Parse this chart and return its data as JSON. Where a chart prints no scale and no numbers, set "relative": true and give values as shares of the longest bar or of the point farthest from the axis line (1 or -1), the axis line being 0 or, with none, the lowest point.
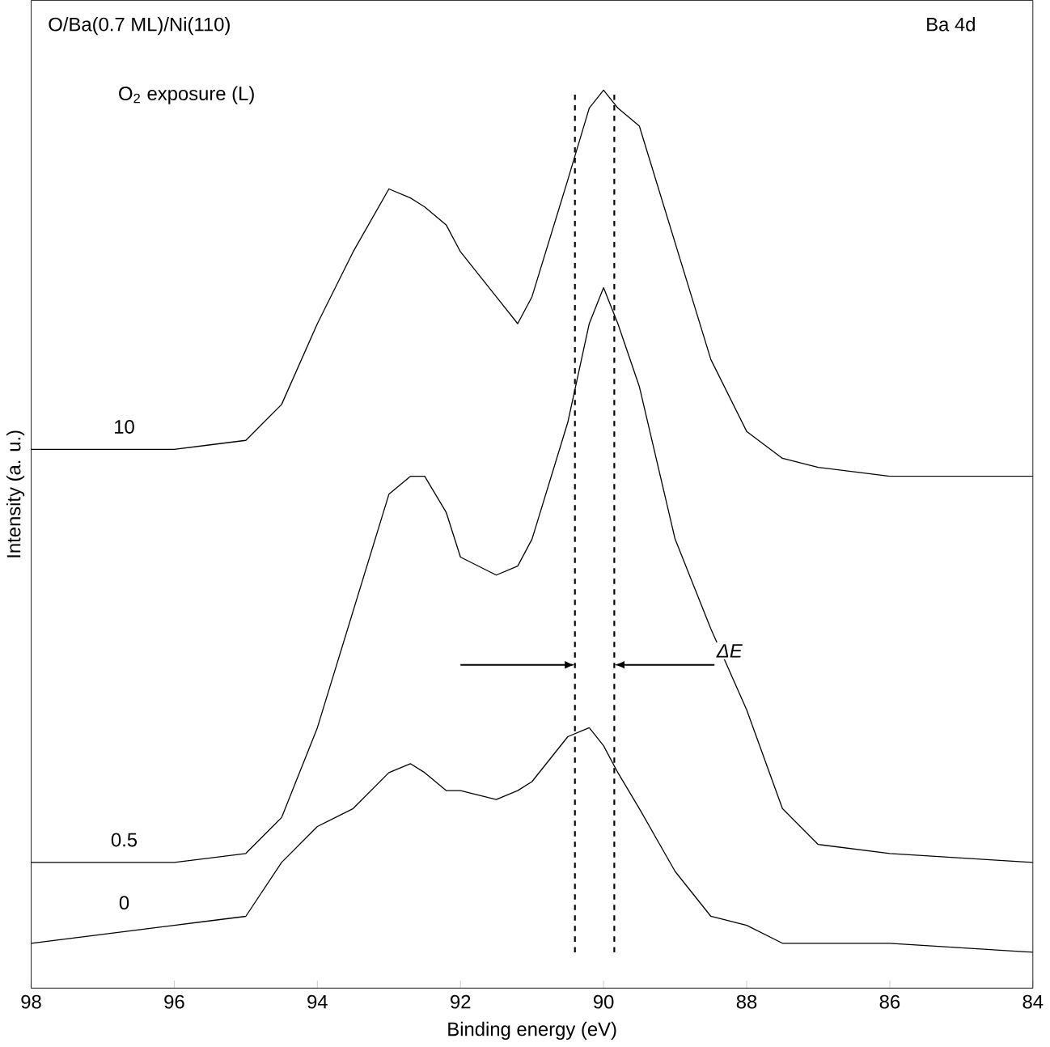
{
  "chart_data": {
    "type": "line",
    "title": "O/Ba(0.7 ML)/Ni(110)",
    "subtitle": "Ba 4d",
    "legend_title": "O$_{2}$ exposure (L)",
    "xlabel": "Binding energy (eV)",
    "ylabel": "Intensity (a. u.)",
    "relative": true,
    "xlim": [
      98,
      84
    ],
    "xticks": [
      98,
      96,
      94,
      92,
      90,
      88,
      86,
      84
    ],
    "marker": "none",
    "line_style": "solid",
    "x": [
      98,
      96,
      95,
      94.5,
      94,
      93.5,
      93,
      92.7,
      92.5,
      92.2,
      92,
      91.5,
      91.2,
      91,
      90.5,
      90.2,
      90,
      89.8,
      89.5,
      89,
      88.5,
      88,
      87.5,
      87,
      86,
      84
    ],
    "series": [
      {
        "name": "10",
        "color": "#000000",
        "values": [
          0.6,
          0.6,
          0.61,
          0.65,
          0.74,
          0.82,
          0.89,
          0.88,
          0.87,
          0.85,
          0.82,
          0.77,
          0.74,
          0.77,
          0.9,
          0.98,
          1.0,
          0.98,
          0.96,
          0.83,
          0.7,
          0.62,
          0.59,
          0.58,
          0.57,
          0.57
        ]
      },
      {
        "name": "0.5",
        "color": "#000000",
        "values": [
          0.14,
          0.14,
          0.15,
          0.19,
          0.29,
          0.42,
          0.55,
          0.57,
          0.57,
          0.53,
          0.48,
          0.46,
          0.47,
          0.5,
          0.63,
          0.74,
          0.78,
          0.74,
          0.67,
          0.5,
          0.4,
          0.31,
          0.2,
          0.16,
          0.15,
          0.14
        ]
      },
      {
        "name": "0",
        "color": "#000000",
        "values": [
          0.05,
          0.07,
          0.08,
          0.14,
          0.18,
          0.2,
          0.24,
          0.25,
          0.24,
          0.22,
          0.22,
          0.21,
          0.22,
          0.23,
          0.28,
          0.29,
          0.27,
          0.24,
          0.2,
          0.13,
          0.08,
          0.07,
          0.05,
          0.05,
          0.05,
          0.04
        ]
      }
    ],
    "ref_lines": [
      {
        "axis": "x",
        "value": 90.4,
        "color": "#000000",
        "line_style": "dashed"
      },
      {
        "axis": "x",
        "value": 89.85,
        "color": "#000000",
        "line_style": "dashed"
      }
    ],
    "annotations": [
      "ΔE"
    ]
  }
}
